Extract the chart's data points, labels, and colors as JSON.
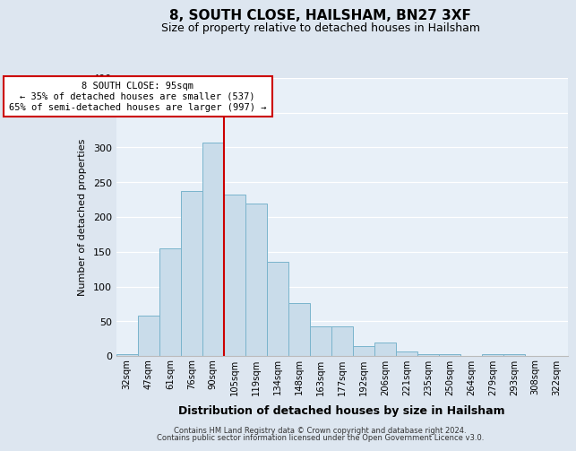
{
  "title": "8, SOUTH CLOSE, HAILSHAM, BN27 3XF",
  "subtitle": "Size of property relative to detached houses in Hailsham",
  "xlabel": "Distribution of detached houses by size in Hailsham",
  "ylabel": "Number of detached properties",
  "categories": [
    "32sqm",
    "47sqm",
    "61sqm",
    "76sqm",
    "90sqm",
    "105sqm",
    "119sqm",
    "134sqm",
    "148sqm",
    "163sqm",
    "177sqm",
    "192sqm",
    "206sqm",
    "221sqm",
    "235sqm",
    "250sqm",
    "264sqm",
    "279sqm",
    "293sqm",
    "308sqm",
    "322sqm"
  ],
  "values": [
    3,
    58,
    155,
    238,
    307,
    232,
    219,
    135,
    76,
    42,
    43,
    14,
    20,
    7,
    3,
    2,
    0,
    3,
    2,
    0,
    0
  ],
  "bar_color": "#c9dcea",
  "bar_edge_color": "#7ab4cc",
  "marker_line_color": "#cc0000",
  "marker_label": "8 SOUTH CLOSE: 95sqm",
  "annotation_line1": "← 35% of detached houses are smaller (537)",
  "annotation_line2": "65% of semi-detached houses are larger (997) →",
  "box_edge_color": "#cc0000",
  "ylim": [
    0,
    400
  ],
  "yticks": [
    0,
    50,
    100,
    150,
    200,
    250,
    300,
    350,
    400
  ],
  "footer1": "Contains HM Land Registry data © Crown copyright and database right 2024.",
  "footer2": "Contains public sector information licensed under the Open Government Licence v3.0.",
  "background_color": "#dde6f0",
  "plot_bg_color": "#e8f0f8",
  "grid_color": "#ffffff"
}
